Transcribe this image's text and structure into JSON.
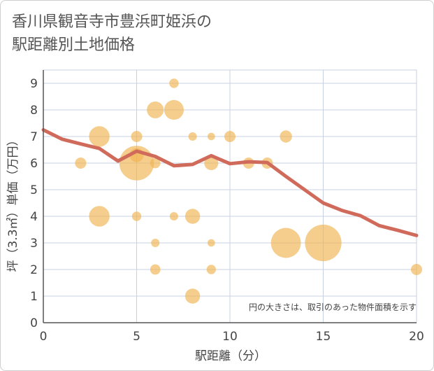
{
  "title_line1": "香川県観音寺市豊浜町姫浜の",
  "title_line2": "駅距離別土地価格",
  "colors": {
    "bubble": "#f0b350",
    "line": "#d06b5c",
    "grid": "#c8d2e0",
    "axis": "#555555"
  },
  "chart_data": {
    "type": "scatter",
    "title": "香川県観音寺市豊浜町姫浜の駅距離別土地価格",
    "xlabel": "駅距離（分）",
    "ylabel": "坪（3.3㎡）単価（万円）",
    "xlim": [
      0,
      20
    ],
    "ylim": [
      0,
      9.5
    ],
    "xticks": [
      "0",
      "5",
      "10",
      "15",
      "20"
    ],
    "yticks": [
      "0",
      "1",
      "2",
      "3",
      "4",
      "5",
      "6",
      "7",
      "8",
      "9"
    ],
    "grid": true,
    "note": "円の大きさは、取引のあった物件面積を示す",
    "scatter": [
      {
        "x": 2,
        "y": 6,
        "size": 1.2
      },
      {
        "x": 3,
        "y": 7,
        "size": 2.2
      },
      {
        "x": 3,
        "y": 4,
        "size": 2.2
      },
      {
        "x": 5,
        "y": 7,
        "size": 1.2
      },
      {
        "x": 5,
        "y": 6.3,
        "size": 1.5
      },
      {
        "x": 5,
        "y": 6,
        "size": 3.7
      },
      {
        "x": 5,
        "y": 4,
        "size": 1.0
      },
      {
        "x": 6,
        "y": 8,
        "size": 1.8
      },
      {
        "x": 6,
        "y": 6,
        "size": 1.1
      },
      {
        "x": 6,
        "y": 3,
        "size": 0.9
      },
      {
        "x": 6,
        "y": 2,
        "size": 1.1
      },
      {
        "x": 7,
        "y": 9,
        "size": 1.0
      },
      {
        "x": 7,
        "y": 8,
        "size": 2.1
      },
      {
        "x": 7,
        "y": 4,
        "size": 0.9
      },
      {
        "x": 8,
        "y": 7,
        "size": 0.9
      },
      {
        "x": 8,
        "y": 4,
        "size": 1.6
      },
      {
        "x": 8,
        "y": 1,
        "size": 1.6
      },
      {
        "x": 9,
        "y": 7,
        "size": 0.8
      },
      {
        "x": 9,
        "y": 6,
        "size": 1.5
      },
      {
        "x": 9,
        "y": 3,
        "size": 0.8
      },
      {
        "x": 9,
        "y": 2,
        "size": 1.0
      },
      {
        "x": 10,
        "y": 7,
        "size": 1.2
      },
      {
        "x": 11,
        "y": 6,
        "size": 1.2
      },
      {
        "x": 12,
        "y": 6,
        "size": 1.2
      },
      {
        "x": 13,
        "y": 7,
        "size": 1.3
      },
      {
        "x": 13,
        "y": 3,
        "size": 3.2
      },
      {
        "x": 15,
        "y": 3,
        "size": 3.9
      },
      {
        "x": 20,
        "y": 2,
        "size": 1.2
      }
    ],
    "trend": {
      "x": [
        0,
        1,
        2,
        3,
        4,
        5,
        6,
        7,
        8,
        9,
        10,
        11,
        12,
        13,
        14,
        15,
        16,
        17,
        18,
        19,
        20
      ],
      "y": [
        7.25,
        6.9,
        6.72,
        6.55,
        6.08,
        6.45,
        6.25,
        5.9,
        5.95,
        6.28,
        5.98,
        6.05,
        6.02,
        5.5,
        5.0,
        4.5,
        4.22,
        4.02,
        3.65,
        3.47,
        3.28
      ]
    }
  }
}
